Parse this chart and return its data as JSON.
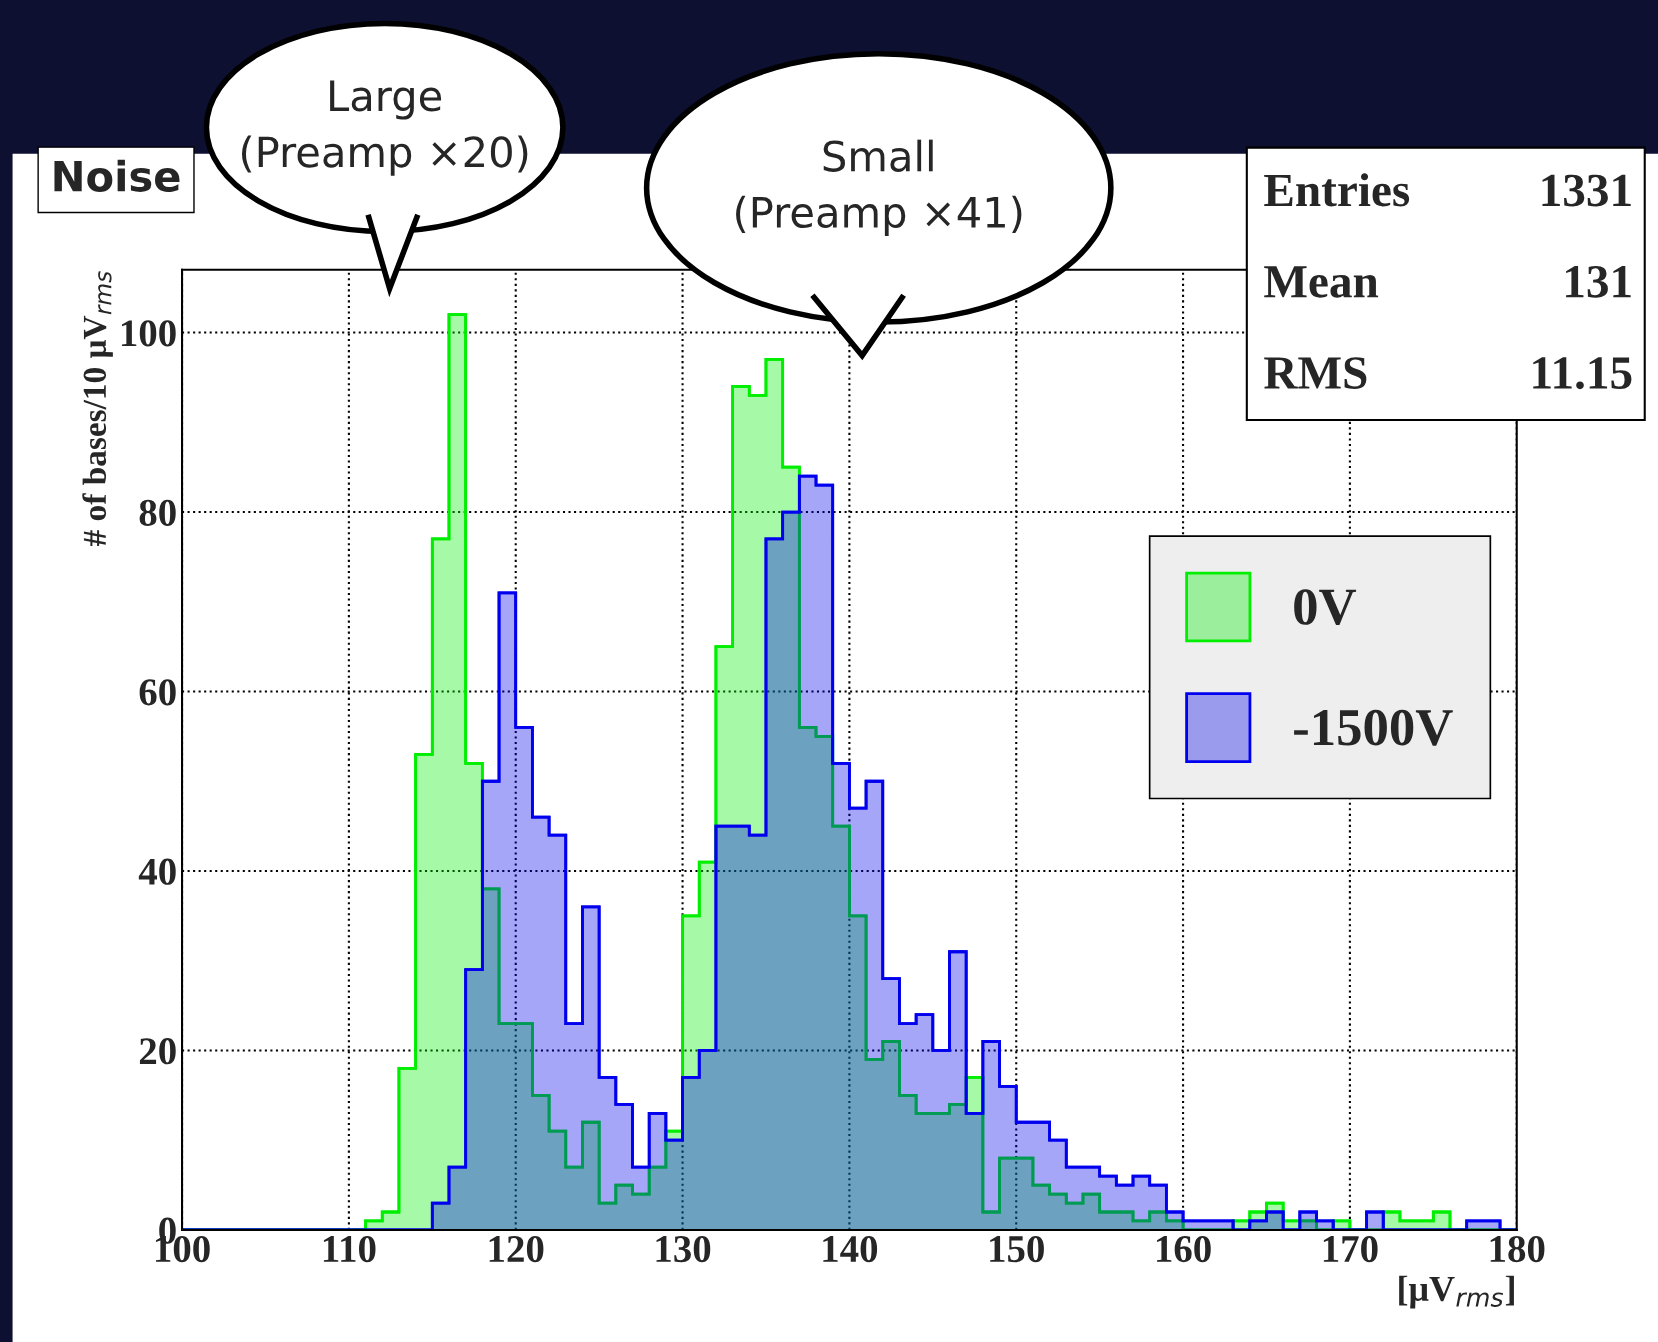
{
  "chart_data": {
    "type": "histogram",
    "title": "Noise",
    "xlabel": "[μV$_{rms}$]",
    "ylabel": "# of bases/10 μV$_{rms}$",
    "bins": [
      100,
      101,
      102,
      103,
      104,
      105,
      106,
      107,
      108,
      109,
      110,
      111,
      112,
      113,
      114,
      115,
      116,
      117,
      118,
      119,
      120,
      121,
      122,
      123,
      124,
      125,
      126,
      127,
      128,
      129,
      130,
      131,
      132,
      133,
      134,
      135,
      136,
      137,
      138,
      139,
      140,
      141,
      142,
      143,
      144,
      145,
      146,
      147,
      148,
      149,
      150,
      151,
      152,
      153,
      154,
      155,
      156,
      157,
      158,
      159,
      160,
      161,
      162,
      163,
      164,
      165,
      166,
      167,
      168,
      169,
      170,
      171,
      172,
      173,
      174,
      175,
      176,
      177,
      178,
      179,
      180
    ],
    "series": [
      {
        "name": "0V",
        "color": "#00ee00",
        "values": [
          0,
          0,
          0,
          0,
          0,
          0,
          0,
          0,
          0,
          0,
          0,
          1,
          2,
          18,
          53,
          77,
          102,
          52,
          38,
          23,
          23,
          15,
          11,
          7,
          12,
          3,
          5,
          4,
          7,
          11,
          35,
          41,
          65,
          94,
          93,
          97,
          85,
          56,
          55,
          45,
          35,
          19,
          21,
          15,
          13,
          13,
          14,
          17,
          2,
          8,
          8,
          5,
          4,
          3,
          4,
          2,
          2,
          1,
          2,
          1,
          0,
          0,
          0,
          1,
          2,
          3,
          1,
          1,
          0,
          1,
          0,
          0,
          2,
          1,
          1,
          2,
          0,
          0,
          0,
          0
        ]
      },
      {
        "name": "-1500V",
        "color": "#0000ee",
        "values": [
          0,
          0,
          0,
          0,
          0,
          0,
          0,
          0,
          0,
          0,
          0,
          0,
          0,
          0,
          0,
          3,
          7,
          29,
          50,
          71,
          56,
          46,
          44,
          23,
          36,
          17,
          14,
          7,
          13,
          10,
          17,
          20,
          45,
          45,
          44,
          77,
          80,
          84,
          83,
          52,
          47,
          50,
          28,
          23,
          24,
          20,
          31,
          13,
          21,
          16,
          12,
          12,
          10,
          7,
          7,
          6,
          5,
          6,
          5,
          2,
          1,
          1,
          1,
          0,
          1,
          2,
          0,
          2,
          1,
          0,
          0,
          2,
          0,
          0,
          0,
          0,
          0,
          1,
          1,
          0
        ]
      }
    ],
    "xlim": [
      100,
      180
    ],
    "xticks": [
      100,
      110,
      120,
      130,
      140,
      150,
      160,
      170,
      180
    ],
    "ylim": [
      0,
      107
    ],
    "yticks": [
      0,
      20,
      40,
      60,
      80,
      100
    ],
    "grid": true,
    "legend": "right",
    "annotations": [
      "Entries 1331",
      "Mean 131",
      "RMS 11.15",
      "Large\n(Preamp ×20)",
      "Small\n(Preamp ×41)"
    ]
  }
}
